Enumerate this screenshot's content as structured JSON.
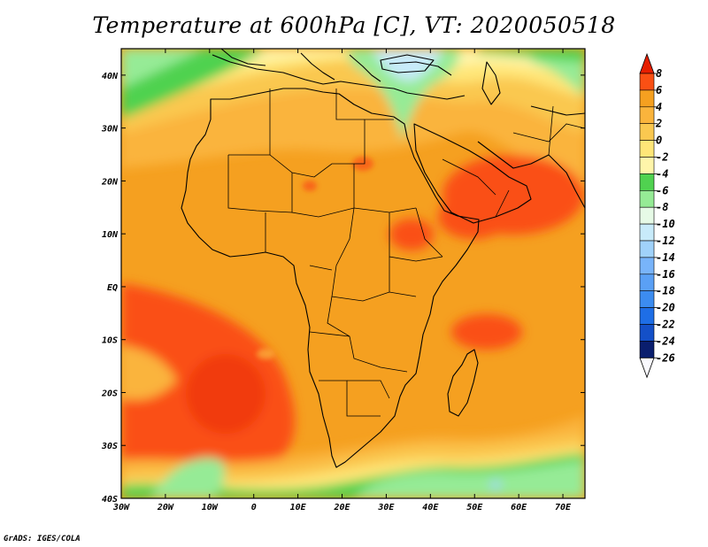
{
  "title": "Temperature at 600hPa [C], VT: 2020050518",
  "credit": "GrADS: IGES/COLA",
  "map": {
    "lon_range": [
      -30,
      75
    ],
    "lat_range": [
      -40,
      45
    ],
    "x_ticks": [
      {
        "value": -30,
        "label": "30W"
      },
      {
        "value": -20,
        "label": "20W"
      },
      {
        "value": -10,
        "label": "10W"
      },
      {
        "value": 0,
        "label": "0"
      },
      {
        "value": 10,
        "label": "10E"
      },
      {
        "value": 20,
        "label": "20E"
      },
      {
        "value": 30,
        "label": "30E"
      },
      {
        "value": 40,
        "label": "40E"
      },
      {
        "value": 50,
        "label": "50E"
      },
      {
        "value": 60,
        "label": "60E"
      },
      {
        "value": 70,
        "label": "70E"
      }
    ],
    "y_ticks": [
      {
        "value": 40,
        "label": "40N"
      },
      {
        "value": 30,
        "label": "30N"
      },
      {
        "value": 20,
        "label": "20N"
      },
      {
        "value": 10,
        "label": "10N"
      },
      {
        "value": 0,
        "label": "EQ"
      },
      {
        "value": -10,
        "label": "10S"
      },
      {
        "value": -20,
        "label": "20S"
      },
      {
        "value": -30,
        "label": "30S"
      },
      {
        "value": -40,
        "label": "40S"
      }
    ],
    "colors": {
      "lt_m26": "#fafaff",
      "m26_m24": "#0a1e6e",
      "m24_m22": "#1450c8",
      "m22_m20": "#1e6ee6",
      "m20_m18": "#3c8cf0",
      "m18_m16": "#5aa0f5",
      "m16_m14": "#78b4fa",
      "m14_m12": "#a0d2fa",
      "m12_m10": "#c8ebfa",
      "m10_m8": "#e6fae6",
      "m8_m6": "#96eb96",
      "m6_m4": "#50d250",
      "m4_m2": "#fff5aa",
      "m2_0": "#ffe678",
      "0_2": "#fac850",
      "2_4": "#fab43c",
      "4_6": "#f5a020",
      "6_8": "#fa5014",
      "gt_8": "#e61e00"
    }
  },
  "colorbar": {
    "levels": [
      "8",
      "6",
      "4",
      "2",
      "0",
      "-2",
      "-4",
      "-6",
      "-8",
      "-10",
      "-12",
      "-14",
      "-16",
      "-18",
      "-20",
      "-22",
      "-24",
      "-26"
    ],
    "colors": [
      "#e61e00",
      "#fa5014",
      "#f5a020",
      "#fab43c",
      "#fac850",
      "#ffe678",
      "#fff5aa",
      "#50d250",
      "#96eb96",
      "#e6fae6",
      "#c8ebfa",
      "#a0d2fa",
      "#78b4fa",
      "#5aa0f5",
      "#3c8cf0",
      "#1e6ee6",
      "#1450c8",
      "#0a1e6e",
      "#fafaff"
    ]
  }
}
